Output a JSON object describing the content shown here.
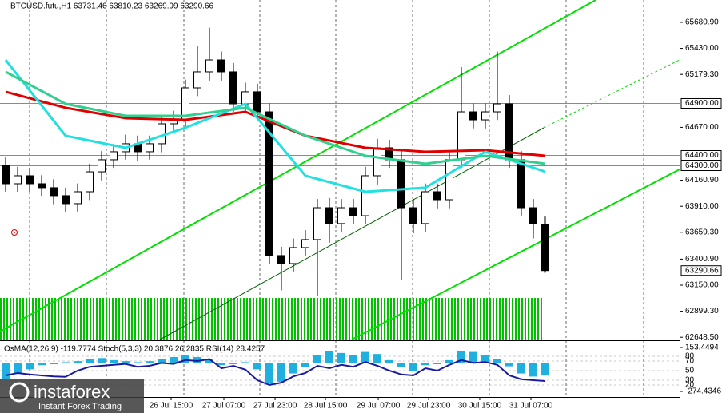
{
  "chart_data": {
    "type": "candlestick",
    "title": "BTCUSD.futu,H1  63731.46 63810.23 63269.99 63290.66",
    "open": [
      64300,
      64127,
      64204,
      64127,
      64089,
      64012,
      63935,
      64050,
      64242,
      64358,
      64435,
      64512,
      64435,
      64512,
      64704,
      64742,
      65050,
      65204,
      65319,
      65204,
      64896,
      65012,
      64819,
      63435,
      63358,
      63512,
      63589,
      63896,
      63743,
      63896,
      63819,
      64204,
      64473,
      64358,
      63896,
      63743,
      64050,
      63973,
      64358,
      64819,
      64742,
      64819,
      64896,
      64358,
      63896,
      63731.46
    ],
    "high": [
      64380,
      64290,
      64280,
      64210,
      64170,
      64090,
      64130,
      64320,
      64440,
      64510,
      64600,
      64590,
      64590,
      64790,
      64830,
      65130,
      65450,
      65630,
      65400,
      65290,
      65100,
      65090,
      64900,
      63520,
      63600,
      63680,
      63980,
      63990,
      63980,
      63980,
      64290,
      64560,
      64550,
      64440,
      63980,
      64130,
      64130,
      64440,
      65250,
      64900,
      64900,
      65400,
      64980,
      64440,
      63980,
      63810.23
    ],
    "low": [
      64050,
      64050,
      64050,
      64010,
      63930,
      63850,
      63860,
      63970,
      64160,
      64280,
      64360,
      64350,
      64360,
      64430,
      64620,
      64660,
      64970,
      65120,
      65120,
      64820,
      64810,
      64740,
      63350,
      63100,
      63280,
      63430,
      63050,
      63560,
      63660,
      63740,
      63740,
      64120,
      64280,
      63200,
      63650,
      63660,
      63890,
      63890,
      64280,
      64660,
      64660,
      64740,
      64280,
      63820,
      63600,
      63269.99
    ],
    "close": [
      64127,
      64204,
      64127,
      64089,
      64012,
      63935,
      64050,
      64242,
      64358,
      64435,
      64512,
      64435,
      64512,
      64704,
      64742,
      65050,
      65204,
      65319,
      65204,
      64896,
      65012,
      64819,
      63435,
      63358,
      63512,
      63589,
      63896,
      63743,
      63896,
      63819,
      64204,
      64473,
      64358,
      63896,
      63743,
      64050,
      63973,
      64358,
      64819,
      64742,
      64819,
      64896,
      64358,
      63896,
      63743,
      63290.66
    ],
    "series": [
      {
        "color": "#e00000",
        "x": [
          0,
          5,
          10,
          15,
          20,
          25,
          30,
          35,
          40,
          45
        ],
        "values": [
          65012,
          64858,
          64758,
          64742,
          64819,
          64589,
          64473,
          64435,
          64450,
          64396
        ]
      },
      {
        "color": "#20e0e0",
        "x": [
          0,
          5,
          10,
          15,
          20,
          25,
          30,
          35,
          40,
          45
        ],
        "values": [
          65319,
          64589,
          64473,
          64666,
          64896,
          64204,
          64050,
          64089,
          64435,
          64243
        ]
      },
      {
        "color": "#30d090",
        "x": [
          0,
          5,
          10,
          15,
          20,
          25,
          30,
          35,
          40,
          45
        ],
        "values": [
          65204,
          64896,
          64781,
          64781,
          64858,
          64589,
          64396,
          64319,
          64396,
          64319
        ]
      }
    ],
    "ylim": [
      62627,
      65896
    ],
    "yticks": [
      {
        "value": 65680.9,
        "label": "65680.90"
      },
      {
        "value": 65430,
        "label": "65430.00"
      },
      {
        "value": 65179.3,
        "label": "65179.30"
      },
      {
        "value": 64670,
        "label": "64670.00"
      },
      {
        "value": 64160.9,
        "label": "64160.90"
      },
      {
        "value": 63910,
        "label": "63910.00"
      },
      {
        "value": 63659.3,
        "label": "63659.30"
      },
      {
        "value": 63400.9,
        "label": "63400.90"
      },
      {
        "value": 63150,
        "label": "63150.00"
      },
      {
        "value": 62899.3,
        "label": "62899.30"
      },
      {
        "value": 62648.5,
        "label": "62648.50"
      }
    ],
    "levels": [
      {
        "value": 64900,
        "label": "64900.00"
      },
      {
        "value": 64400,
        "label": "64400.00"
      },
      {
        "value": 64300,
        "label": "64300.00"
      }
    ],
    "current_price": 63290.66,
    "xticks": [
      {
        "value": 13.8,
        "label": "26 Jul 15:00"
      },
      {
        "value": 18.2,
        "label": "27 Jul 07:00"
      },
      {
        "value": 22.47,
        "label": "27 Jul 23:00"
      },
      {
        "value": 26.67,
        "label": "28 Jul 15:00"
      },
      {
        "value": 31.07,
        "label": "29 Jul 07:00"
      },
      {
        "value": 35.27,
        "label": "29 Jul 23:00"
      },
      {
        "value": 39.53,
        "label": "30 Jul 15:00"
      },
      {
        "value": 43.8,
        "label": "31 Jul 07:00"
      }
    ],
    "indicator": {
      "title": "OsMA(12,26,9) -119.7774  Stoch(5,3,3) 20.3876 26.2835  RSI(14) 28.4257",
      "osma": [
        -150,
        -100,
        -60,
        -20,
        -10,
        10,
        20,
        40,
        50,
        30,
        20,
        10,
        20,
        40,
        60,
        80,
        60,
        40,
        -20,
        -10,
        10,
        -60,
        -200,
        -180,
        -100,
        -40,
        80,
        120,
        100,
        80,
        110,
        90,
        30,
        -40,
        -80,
        -20,
        -10,
        30,
        120,
        110,
        80,
        40,
        -30,
        -100,
        -130,
        -119.7774
      ],
      "osma_color": "#20b0e0",
      "osma_lim": [
        -328.9,
        207.9
      ],
      "osma_ticks": [
        153.4494,
        -274.4346
      ],
      "rsi": [
        40,
        45,
        42,
        40,
        38,
        37,
        50,
        58,
        60,
        62,
        64,
        58,
        60,
        66,
        64,
        72,
        70,
        74,
        55,
        60,
        52,
        30,
        20,
        25,
        38,
        45,
        60,
        55,
        62,
        58,
        68,
        60,
        50,
        42,
        40,
        55,
        50,
        62,
        72,
        66,
        68,
        62,
        40,
        32,
        30,
        28.4257
      ],
      "rsi_color": "#1a1aa0",
      "rsi_lim": [
        -5,
        110
      ],
      "rsi_levels": [
        80,
        70,
        50,
        30,
        20
      ]
    },
    "watermark": {
      "brand": "instaforex",
      "tagline": "Instant Forex Trading"
    }
  }
}
